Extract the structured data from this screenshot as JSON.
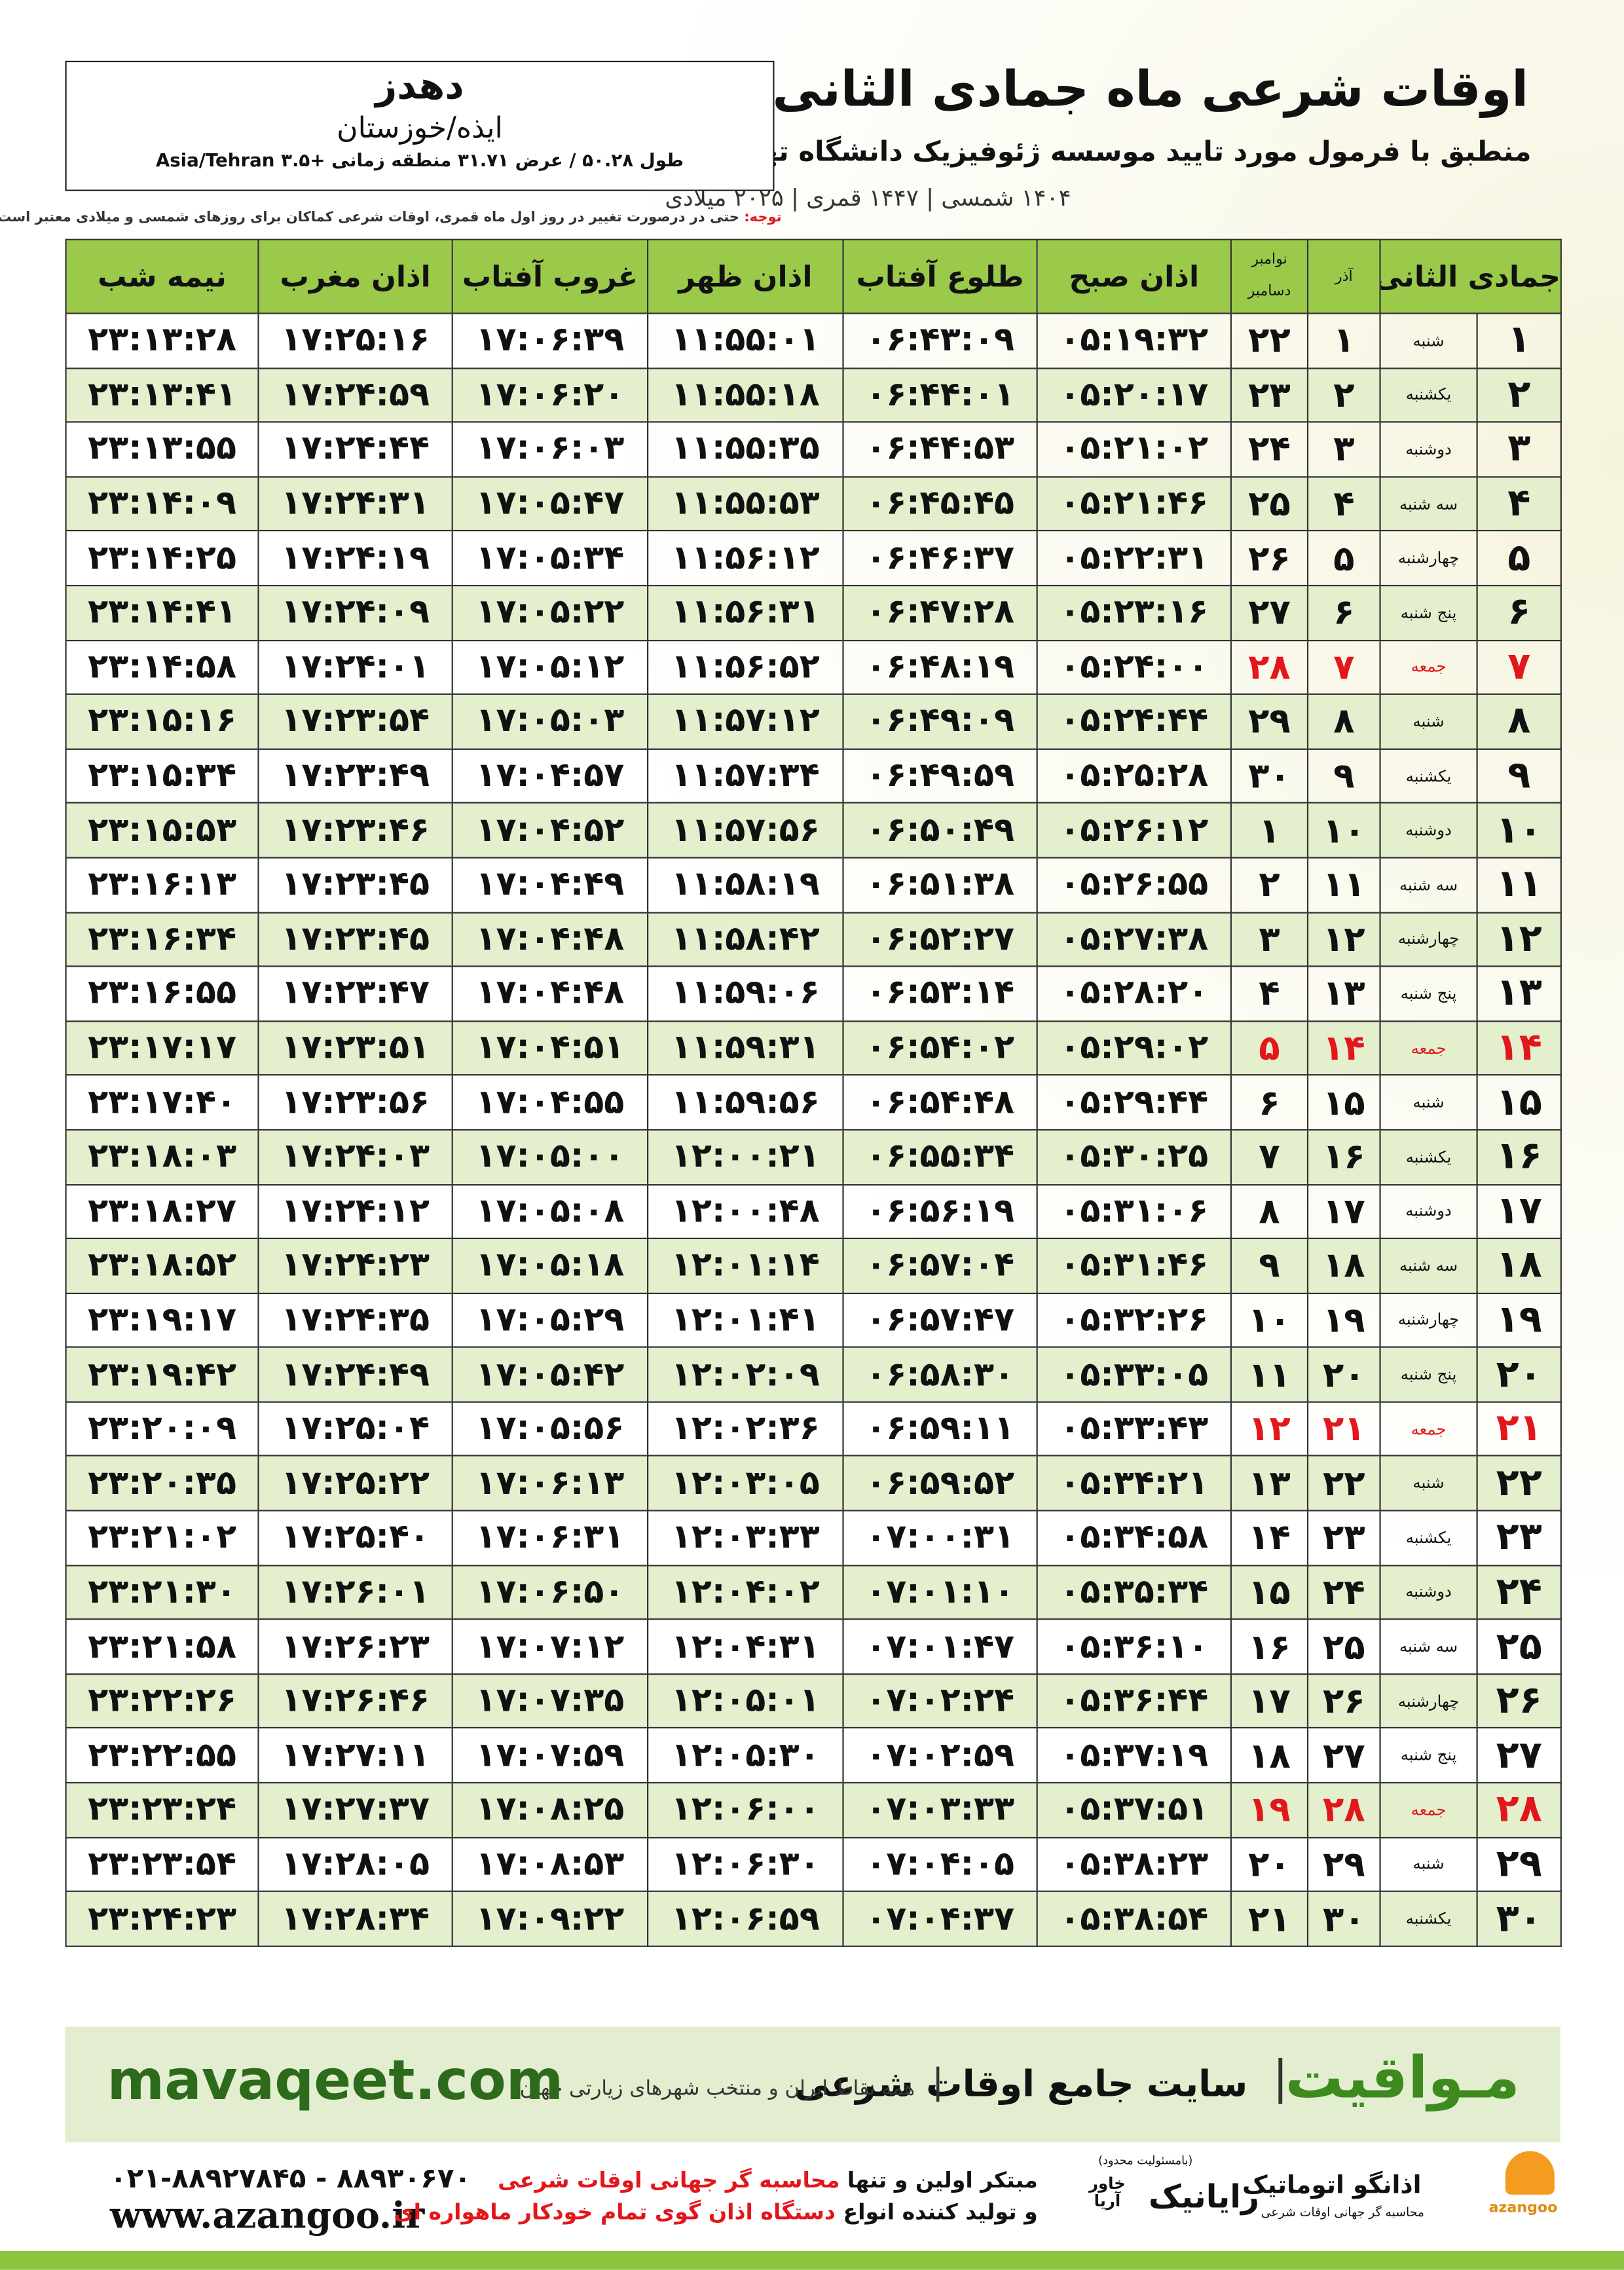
{
  "header": {
    "title": "اوقات شرعی ماه جمادی الثانی",
    "subtitle": "منطبق با فرمول مورد تایید موسسه ژئوفیزیک دانشگاه تهران",
    "dates": "۱۴۰۴ شمسی | ۱۴۴۷ قمری | ۲۰۲۵ میلادی"
  },
  "location": {
    "city": "دهدز",
    "province": "ایذه/خوزستان",
    "coords": "طول ۵۰.۲۸ / عرض ۳۱.۷۱ منطقه زمانی +۳.۵ Asia/Tehran"
  },
  "note": {
    "label": "توجه:",
    "text": "حتی در درصورت تغییر در روز اول ماه قمری، اوقات شرعی کماکان برای روزهای شمسی و میلادی معتبر است."
  },
  "table": {
    "columns": [
      "جمادی الثانی",
      "آذر",
      "اذان صبح",
      "طلوع آفتاب",
      "اذان ظهر",
      "غروب آفتاب",
      "اذان مغرب",
      "نیمه شب"
    ],
    "gregorian_months": [
      "نوامبر",
      "دسامبر"
    ],
    "rows": [
      {
        "color": "#111111",
        "cells": [
          "۱",
          "شنبه",
          "۱",
          "۲۲",
          "۰۵:۱۹:۳۲",
          "۰۶:۴۳:۰۹",
          "۱۱:۵۵:۰۱",
          "۱۷:۰۶:۳۹",
          "۱۷:۲۵:۱۶",
          "۲۳:۱۳:۲۸"
        ]
      },
      {
        "color": "#111111",
        "cells": [
          "۲",
          "یکشنبه",
          "۲",
          "۲۳",
          "۰۵:۲۰:۱۷",
          "۰۶:۴۴:۰۱",
          "۱۱:۵۵:۱۸",
          "۱۷:۰۶:۲۰",
          "۱۷:۲۴:۵۹",
          "۲۳:۱۳:۴۱"
        ]
      },
      {
        "color": "#111111",
        "cells": [
          "۳",
          "دوشنبه",
          "۳",
          "۲۴",
          "۰۵:۲۱:۰۲",
          "۰۶:۴۴:۵۳",
          "۱۱:۵۵:۳۵",
          "۱۷:۰۶:۰۳",
          "۱۷:۲۴:۴۴",
          "۲۳:۱۳:۵۵"
        ]
      },
      {
        "color": "#111111",
        "cells": [
          "۴",
          "سه شنبه",
          "۴",
          "۲۵",
          "۰۵:۲۱:۴۶",
          "۰۶:۴۵:۴۵",
          "۱۱:۵۵:۵۳",
          "۱۷:۰۵:۴۷",
          "۱۷:۲۴:۳۱",
          "۲۳:۱۴:۰۹"
        ]
      },
      {
        "color": "#111111",
        "cells": [
          "۵",
          "چهارشنبه",
          "۵",
          "۲۶",
          "۰۵:۲۲:۳۱",
          "۰۶:۴۶:۳۷",
          "۱۱:۵۶:۱۲",
          "۱۷:۰۵:۳۴",
          "۱۷:۲۴:۱۹",
          "۲۳:۱۴:۲۵"
        ]
      },
      {
        "color": "#111111",
        "cells": [
          "۶",
          "پنج شنبه",
          "۶",
          "۲۷",
          "۰۵:۲۳:۱۶",
          "۰۶:۴۷:۲۸",
          "۱۱:۵۶:۳۱",
          "۱۷:۰۵:۲۲",
          "۱۷:۲۴:۰۹",
          "۲۳:۱۴:۴۱"
        ]
      },
      {
        "color": "#e3161b",
        "cells": [
          "۷",
          "جمعه",
          "۷",
          "۲۸",
          "۰۵:۲۴:۰۰",
          "۰۶:۴۸:۱۹",
          "۱۱:۵۶:۵۲",
          "۱۷:۰۵:۱۲",
          "۱۷:۲۴:۰۱",
          "۲۳:۱۴:۵۸"
        ]
      },
      {
        "color": "#111111",
        "cells": [
          "۸",
          "شنبه",
          "۸",
          "۲۹",
          "۰۵:۲۴:۴۴",
          "۰۶:۴۹:۰۹",
          "۱۱:۵۷:۱۲",
          "۱۷:۰۵:۰۳",
          "۱۷:۲۳:۵۴",
          "۲۳:۱۵:۱۶"
        ]
      },
      {
        "color": "#111111",
        "cells": [
          "۹",
          "یکشنبه",
          "۹",
          "۳۰",
          "۰۵:۲۵:۲۸",
          "۰۶:۴۹:۵۹",
          "۱۱:۵۷:۳۴",
          "۱۷:۰۴:۵۷",
          "۱۷:۲۳:۴۹",
          "۲۳:۱۵:۳۴"
        ]
      },
      {
        "color": "#111111",
        "cells": [
          "۱۰",
          "دوشنبه",
          "۱۰",
          "۱",
          "۰۵:۲۶:۱۲",
          "۰۶:۵۰:۴۹",
          "۱۱:۵۷:۵۶",
          "۱۷:۰۴:۵۲",
          "۱۷:۲۳:۴۶",
          "۲۳:۱۵:۵۳"
        ]
      },
      {
        "color": "#111111",
        "cells": [
          "۱۱",
          "سه شنبه",
          "۱۱",
          "۲",
          "۰۵:۲۶:۵۵",
          "۰۶:۵۱:۳۸",
          "۱۱:۵۸:۱۹",
          "۱۷:۰۴:۴۹",
          "۱۷:۲۳:۴۵",
          "۲۳:۱۶:۱۳"
        ]
      },
      {
        "color": "#111111",
        "cells": [
          "۱۲",
          "چهارشنبه",
          "۱۲",
          "۳",
          "۰۵:۲۷:۳۸",
          "۰۶:۵۲:۲۷",
          "۱۱:۵۸:۴۲",
          "۱۷:۰۴:۴۸",
          "۱۷:۲۳:۴۵",
          "۲۳:۱۶:۳۴"
        ]
      },
      {
        "color": "#111111",
        "cells": [
          "۱۳",
          "پنج شنبه",
          "۱۳",
          "۴",
          "۰۵:۲۸:۲۰",
          "۰۶:۵۳:۱۴",
          "۱۱:۵۹:۰۶",
          "۱۷:۰۴:۴۸",
          "۱۷:۲۳:۴۷",
          "۲۳:۱۶:۵۵"
        ]
      },
      {
        "color": "#e3161b",
        "cells": [
          "۱۴",
          "جمعه",
          "۱۴",
          "۵",
          "۰۵:۲۹:۰۲",
          "۰۶:۵۴:۰۲",
          "۱۱:۵۹:۳۱",
          "۱۷:۰۴:۵۱",
          "۱۷:۲۳:۵۱",
          "۲۳:۱۷:۱۷"
        ]
      },
      {
        "color": "#111111",
        "cells": [
          "۱۵",
          "شنبه",
          "۱۵",
          "۶",
          "۰۵:۲۹:۴۴",
          "۰۶:۵۴:۴۸",
          "۱۱:۵۹:۵۶",
          "۱۷:۰۴:۵۵",
          "۱۷:۲۳:۵۶",
          "۲۳:۱۷:۴۰"
        ]
      },
      {
        "color": "#111111",
        "cells": [
          "۱۶",
          "یکشنبه",
          "۱۶",
          "۷",
          "۰۵:۳۰:۲۵",
          "۰۶:۵۵:۳۴",
          "۱۲:۰۰:۲۱",
          "۱۷:۰۵:۰۰",
          "۱۷:۲۴:۰۳",
          "۲۳:۱۸:۰۳"
        ]
      },
      {
        "color": "#111111",
        "cells": [
          "۱۷",
          "دوشنبه",
          "۱۷",
          "۸",
          "۰۵:۳۱:۰۶",
          "۰۶:۵۶:۱۹",
          "۱۲:۰۰:۴۸",
          "۱۷:۰۵:۰۸",
          "۱۷:۲۴:۱۲",
          "۲۳:۱۸:۲۷"
        ]
      },
      {
        "color": "#111111",
        "cells": [
          "۱۸",
          "سه شنبه",
          "۱۸",
          "۹",
          "۰۵:۳۱:۴۶",
          "۰۶:۵۷:۰۴",
          "۱۲:۰۱:۱۴",
          "۱۷:۰۵:۱۸",
          "۱۷:۲۴:۲۳",
          "۲۳:۱۸:۵۲"
        ]
      },
      {
        "color": "#111111",
        "cells": [
          "۱۹",
          "چهارشنبه",
          "۱۹",
          "۱۰",
          "۰۵:۳۲:۲۶",
          "۰۶:۵۷:۴۷",
          "۱۲:۰۱:۴۱",
          "۱۷:۰۵:۲۹",
          "۱۷:۲۴:۳۵",
          "۲۳:۱۹:۱۷"
        ]
      },
      {
        "color": "#111111",
        "cells": [
          "۲۰",
          "پنج شنبه",
          "۲۰",
          "۱۱",
          "۰۵:۳۳:۰۵",
          "۰۶:۵۸:۳۰",
          "۱۲:۰۲:۰۹",
          "۱۷:۰۵:۴۲",
          "۱۷:۲۴:۴۹",
          "۲۳:۱۹:۴۲"
        ]
      },
      {
        "color": "#e3161b",
        "cells": [
          "۲۱",
          "جمعه",
          "۲۱",
          "۱۲",
          "۰۵:۳۳:۴۳",
          "۰۶:۵۹:۱۱",
          "۱۲:۰۲:۳۶",
          "۱۷:۰۵:۵۶",
          "۱۷:۲۵:۰۴",
          "۲۳:۲۰:۰۹"
        ]
      },
      {
        "color": "#111111",
        "cells": [
          "۲۲",
          "شنبه",
          "۲۲",
          "۱۳",
          "۰۵:۳۴:۲۱",
          "۰۶:۵۹:۵۲",
          "۱۲:۰۳:۰۵",
          "۱۷:۰۶:۱۳",
          "۱۷:۲۵:۲۲",
          "۲۳:۲۰:۳۵"
        ]
      },
      {
        "color": "#111111",
        "cells": [
          "۲۳",
          "یکشنبه",
          "۲۳",
          "۱۴",
          "۰۵:۳۴:۵۸",
          "۰۷:۰۰:۳۱",
          "۱۲:۰۳:۳۳",
          "۱۷:۰۶:۳۱",
          "۱۷:۲۵:۴۰",
          "۲۳:۲۱:۰۲"
        ]
      },
      {
        "color": "#111111",
        "cells": [
          "۲۴",
          "دوشنبه",
          "۲۴",
          "۱۵",
          "۰۵:۳۵:۳۴",
          "۰۷:۰۱:۱۰",
          "۱۲:۰۴:۰۲",
          "۱۷:۰۶:۵۰",
          "۱۷:۲۶:۰۱",
          "۲۳:۲۱:۳۰"
        ]
      },
      {
        "color": "#111111",
        "cells": [
          "۲۵",
          "سه شنبه",
          "۲۵",
          "۱۶",
          "۰۵:۳۶:۱۰",
          "۰۷:۰۱:۴۷",
          "۱۲:۰۴:۳۱",
          "۱۷:۰۷:۱۲",
          "۱۷:۲۶:۲۳",
          "۲۳:۲۱:۵۸"
        ]
      },
      {
        "color": "#111111",
        "cells": [
          "۲۶",
          "چهارشنبه",
          "۲۶",
          "۱۷",
          "۰۵:۳۶:۴۴",
          "۰۷:۰۲:۲۴",
          "۱۲:۰۵:۰۱",
          "۱۷:۰۷:۳۵",
          "۱۷:۲۶:۴۶",
          "۲۳:۲۲:۲۶"
        ]
      },
      {
        "color": "#111111",
        "cells": [
          "۲۷",
          "پنج شنبه",
          "۲۷",
          "۱۸",
          "۰۵:۳۷:۱۹",
          "۰۷:۰۲:۵۹",
          "۱۲:۰۵:۳۰",
          "۱۷:۰۷:۵۹",
          "۱۷:۲۷:۱۱",
          "۲۳:۲۲:۵۵"
        ]
      },
      {
        "color": "#e3161b",
        "cells": [
          "۲۸",
          "جمعه",
          "۲۸",
          "۱۹",
          "۰۵:۳۷:۵۱",
          "۰۷:۰۳:۳۳",
          "۱۲:۰۶:۰۰",
          "۱۷:۰۸:۲۵",
          "۱۷:۲۷:۳۷",
          "۲۳:۲۳:۲۴"
        ]
      },
      {
        "color": "#111111",
        "cells": [
          "۲۹",
          "شنبه",
          "۲۹",
          "۲۰",
          "۰۵:۳۸:۲۳",
          "۰۷:۰۴:۰۵",
          "۱۲:۰۶:۳۰",
          "۱۷:۰۸:۵۳",
          "۱۷:۲۸:۰۵",
          "۲۳:۲۳:۵۴"
        ]
      },
      {
        "color": "#111111",
        "cells": [
          "۳۰",
          "یکشنبه",
          "۳۰",
          "۲۱",
          "۰۵:۳۸:۵۴",
          "۰۷:۰۴:۳۷",
          "۱۲:۰۶:۵۹",
          "۱۷:۰۹:۲۲",
          "۱۷:۲۸:۳۴",
          "۲۳:۲۴:۲۳"
        ]
      }
    ]
  },
  "banner": {
    "brand": "مـواقیت",
    "slogan": "سایت جامع اوقات شرعی",
    "subslogan": "همه نقاط ایران و منتخب شهرهای زیارتی جهان",
    "url": "mavaqeet.com"
  },
  "footer": {
    "phone": "۰۲۱-۸۸۹۲۷۸۴۵ - ۸۸۹۳۰۶۷۰",
    "website": "www.azangoo.ir",
    "line1": [
      "مبتکر اولین و تنها",
      "محاسبه گر جهانی اوقات شرعی"
    ],
    "line2": [
      "و تولید کننده انواع",
      "دستگاه اذان گوی تمام خودکار ماهواره ای"
    ],
    "rayanik": "رایانیک",
    "khavar": "خاور آریا",
    "limited": "(بامسئولیت محدود)",
    "azangoo_logo": "اذانگو اتوماتیک",
    "azangoo_tagline": "محاسبه گر جهانی اوقات شرعی",
    "azangoo_name": "azangoo"
  }
}
